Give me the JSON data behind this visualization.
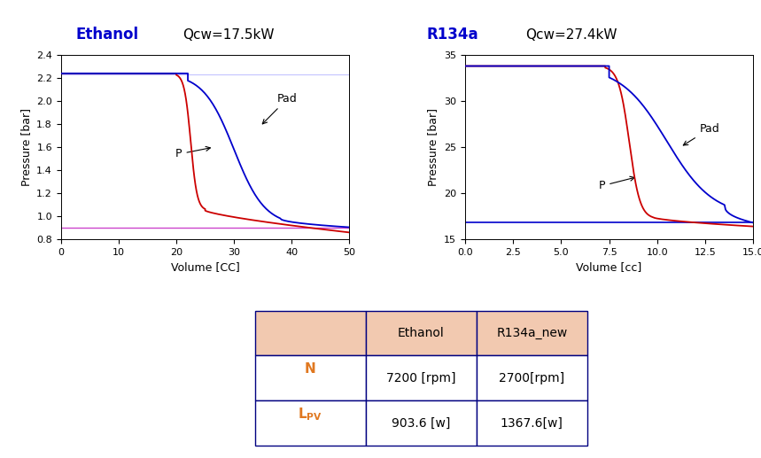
{
  "ethanol": {
    "title": "Ethanol",
    "title_color": "#0000CC",
    "qcw_label": "Qcw=17.5kW",
    "xlabel": "Volume [CC]",
    "ylabel": "Pressure [bar]",
    "xlim": [
      0,
      50
    ],
    "ylim": [
      0.8,
      2.4
    ],
    "yticks": [
      0.8,
      1.0,
      1.2,
      1.4,
      1.6,
      1.8,
      2.0,
      2.2,
      2.4
    ],
    "xticks": [
      0,
      10,
      20,
      30,
      40,
      50
    ],
    "p_high": 2.24,
    "p_low": 0.905,
    "hline_color": "#CC44CC",
    "hline_color2": "#8888FF"
  },
  "r134a": {
    "title": "R134a",
    "title_color": "#0000CC",
    "qcw_label": "Qcw=27.4kW",
    "xlabel": "Volume [cc]",
    "ylabel": "Pressure [bar]",
    "xlim": [
      0.0,
      15.0
    ],
    "ylim": [
      15,
      35
    ],
    "yticks": [
      15,
      20,
      25,
      30,
      35
    ],
    "xticks": [
      0.0,
      2.5,
      5.0,
      7.5,
      10.0,
      12.5,
      15.0
    ],
    "p_high": 33.8,
    "p_low": 16.8,
    "hline_color": "#0000CC"
  },
  "table": {
    "header_bg": "#F2C9B0",
    "border_color": "#000080",
    "label_color": "#E07820",
    "row1": [
      "",
      "Ethanol",
      "R134a_new"
    ],
    "row2": [
      "N",
      "7200 [rpm]",
      "2700[rpm]"
    ],
    "row3": [
      "L_PV",
      "903.6 [w]",
      "1367.6[w]"
    ]
  },
  "line_color_P": "#CC0000",
  "line_color_Pad": "#0000CC"
}
